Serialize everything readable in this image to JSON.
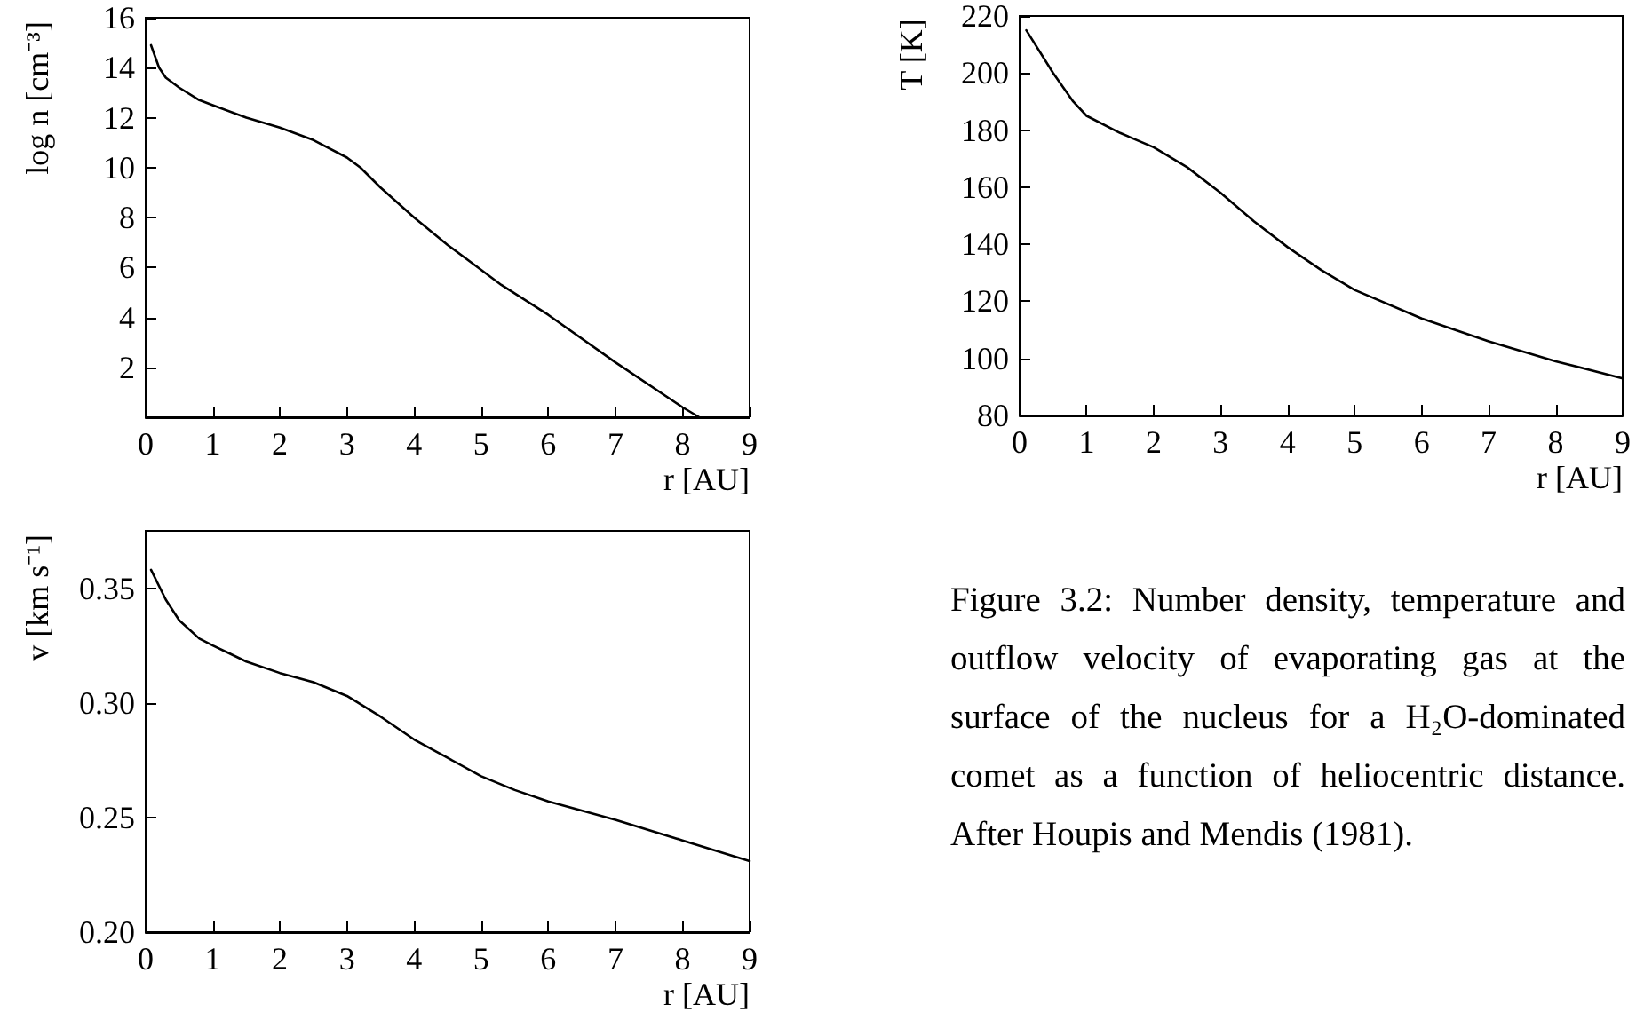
{
  "chart_data": [
    {
      "type": "line",
      "ylabel": "log n [cm⁻³]",
      "xlabel": "r [AU]",
      "xlim": [
        0,
        9
      ],
      "xticks": [
        0,
        1,
        2,
        3,
        4,
        5,
        6,
        7,
        8,
        9
      ],
      "ylim": [
        0,
        16
      ],
      "yticks": [
        2,
        4,
        6,
        8,
        10,
        12,
        14,
        16
      ],
      "grid": false,
      "marker": "none",
      "line_style": "solid",
      "series": [
        {
          "color": "#000000",
          "x": [
            0.08,
            0.2,
            0.3,
            0.5,
            0.8,
            1,
            1.5,
            2,
            2.5,
            3,
            3.2,
            3.5,
            4,
            4.5,
            5,
            5.3,
            6,
            7,
            8,
            8.25
          ],
          "values": [
            14.9,
            14.0,
            13.6,
            13.2,
            12.7,
            12.5,
            12.0,
            11.6,
            11.1,
            10.4,
            10.0,
            9.2,
            8.0,
            6.9,
            5.9,
            5.3,
            4.1,
            2.2,
            0.4,
            0
          ]
        }
      ]
    },
    {
      "type": "line",
      "ylabel": "T [K]",
      "xlabel": "r [AU]",
      "xlim": [
        0,
        9
      ],
      "xticks": [
        0,
        1,
        2,
        3,
        4,
        5,
        6,
        7,
        8,
        9
      ],
      "ylim": [
        80,
        220
      ],
      "yticks": [
        80,
        100,
        120,
        140,
        160,
        180,
        200,
        220
      ],
      "grid": false,
      "marker": "none",
      "line_style": "solid",
      "series": [
        {
          "color": "#000000",
          "x": [
            0.1,
            0.5,
            0.8,
            1,
            1.5,
            2,
            2.5,
            3,
            3.5,
            4,
            4.5,
            5,
            6,
            7,
            8,
            9
          ],
          "values": [
            215,
            200,
            190,
            185,
            179,
            174,
            167,
            158,
            148,
            139,
            131,
            124,
            114,
            106,
            99,
            93
          ]
        }
      ]
    },
    {
      "type": "line",
      "ylabel": "v [km s⁻¹]",
      "xlabel": "r [AU]",
      "xlim": [
        0,
        9
      ],
      "xticks": [
        0,
        1,
        2,
        3,
        4,
        5,
        6,
        7,
        8,
        9
      ],
      "ylim": [
        0.2,
        0.375
      ],
      "yticks": [
        {
          "value": 0.2,
          "label": "0.20"
        },
        {
          "value": 0.25,
          "label": "0.25"
        },
        {
          "value": 0.3,
          "label": "0.30"
        },
        {
          "value": 0.35,
          "label": "0.35"
        }
      ],
      "grid": false,
      "marker": "none",
      "line_style": "solid",
      "annotations": [
        "Figure 3.2: Number density, temperature and outflow velocity of evaporating gas at the surface of the nucleus for a H₂O-dominated comet as a function of heliocentric distance. After Houpis and Mendis (1981)."
      ],
      "series": [
        {
          "color": "#000000",
          "x": [
            0.08,
            0.3,
            0.5,
            0.8,
            1,
            1.5,
            2,
            2.5,
            3,
            3.5,
            4,
            4.5,
            5,
            5.5,
            6,
            7,
            8,
            9
          ],
          "values": [
            0.358,
            0.345,
            0.336,
            0.328,
            0.325,
            0.318,
            0.313,
            0.309,
            0.303,
            0.294,
            0.284,
            0.276,
            0.268,
            0.262,
            0.257,
            0.249,
            0.24,
            0.231
          ]
        }
      ]
    }
  ]
}
